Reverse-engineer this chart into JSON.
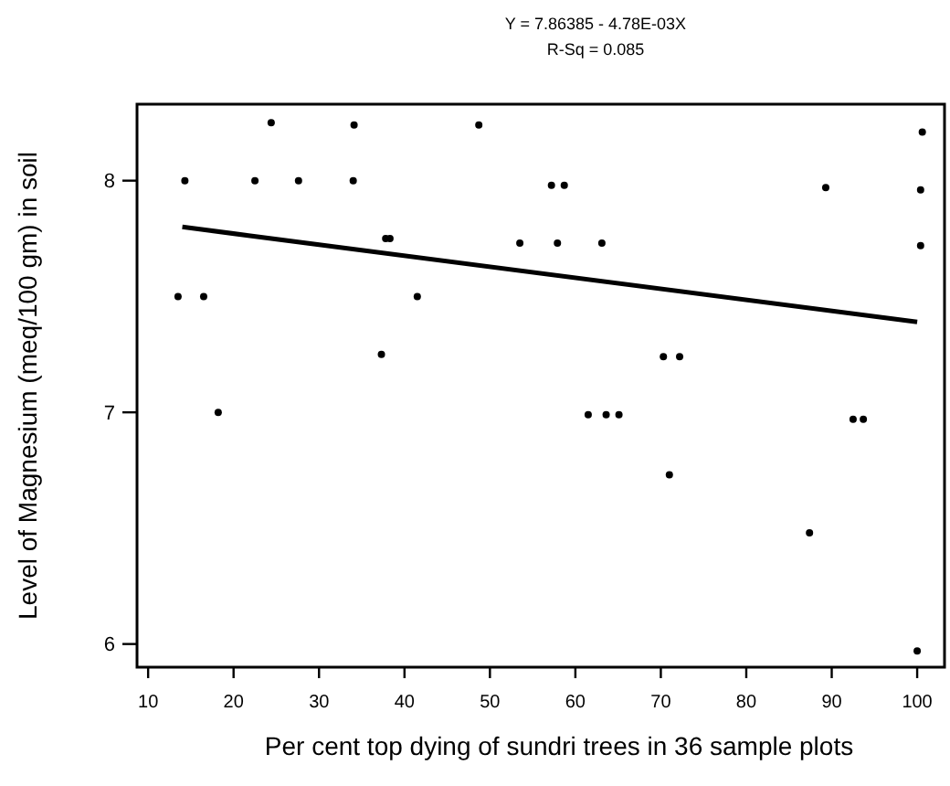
{
  "chart_data": {
    "type": "scatter",
    "title": "Y = 7.86385 - 4.78E-03X",
    "subtitle": "R-Sq = 0.085",
    "xlabel": "Per cent top dying of sundri trees in 36 sample plots",
    "ylabel": "Level of Magnesium (meq/100 gm) in soil",
    "xlim": [
      8.7,
      103.2
    ],
    "ylim": [
      5.9,
      8.33
    ],
    "xticks": [
      10,
      20,
      30,
      40,
      50,
      60,
      70,
      80,
      90,
      100
    ],
    "yticks": [
      6,
      7,
      8
    ],
    "grid": false,
    "marker": "circle",
    "series": [
      {
        "color": "#000000",
        "x": [
          24.4,
          34.1,
          48.7,
          14.3,
          22.5,
          27.6,
          34.0,
          37.8,
          38.3,
          53.5,
          13.5,
          16.5,
          41.5,
          37.3,
          18.2,
          100.6,
          57.2,
          58.7,
          89.3,
          100.4,
          57.9,
          63.1,
          100.4,
          70.3,
          72.2,
          61.5,
          63.6,
          65.1,
          92.5,
          93.7,
          71.0,
          87.4,
          100.0
        ],
        "values": [
          8.25,
          8.24,
          8.24,
          8.0,
          8.0,
          8.0,
          8.0,
          7.75,
          7.75,
          7.73,
          7.5,
          7.5,
          7.5,
          7.25,
          7.0,
          8.21,
          7.98,
          7.98,
          7.97,
          7.96,
          7.73,
          7.73,
          7.72,
          7.24,
          7.24,
          6.99,
          6.99,
          6.99,
          6.97,
          6.97,
          6.73,
          6.48,
          5.97
        ]
      },
      {
        "type": "line",
        "color": "#000000",
        "marker": "none",
        "x": [
          14,
          100
        ],
        "values": [
          7.8,
          7.39
        ]
      }
    ]
  }
}
